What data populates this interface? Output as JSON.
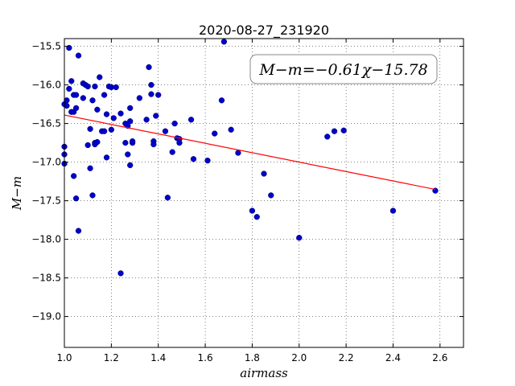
{
  "chart_data": {
    "type": "scatter",
    "title": "2020-08-27_231920",
    "xlabel": "airmass",
    "ylabel": "M−m",
    "annotation": "M−m=−0.61χ−15.78",
    "xlim": [
      1.0,
      2.7
    ],
    "ylim": [
      -19.4,
      -15.4
    ],
    "xticks": [
      "1.0",
      "1.2",
      "1.4",
      "1.6",
      "1.8",
      "2.0",
      "2.2",
      "2.4",
      "2.6"
    ],
    "yticks": [
      "−15.5",
      "−16.0",
      "−16.5",
      "−17.0",
      "−17.5",
      "−18.0",
      "−18.5",
      "−19.0"
    ],
    "grid": true,
    "point_color": "#0000cc",
    "fit_color": "#ff0000",
    "fit": {
      "slope": -0.61,
      "intercept": -15.78,
      "x_range": [
        1.0,
        2.58
      ]
    },
    "points": [
      [
        1.0,
        -16.25
      ],
      [
        1.0,
        -16.8
      ],
      [
        1.0,
        -16.9
      ],
      [
        1.0,
        -17.02
      ],
      [
        1.01,
        -16.27
      ],
      [
        1.01,
        -16.2
      ],
      [
        1.02,
        -15.52
      ],
      [
        1.02,
        -16.05
      ],
      [
        1.03,
        -15.95
      ],
      [
        1.03,
        -16.35
      ],
      [
        1.04,
        -16.35
      ],
      [
        1.04,
        -16.13
      ],
      [
        1.04,
        -17.18
      ],
      [
        1.05,
        -16.3
      ],
      [
        1.05,
        -16.13
      ],
      [
        1.05,
        -17.47
      ],
      [
        1.06,
        -15.62
      ],
      [
        1.06,
        -17.89
      ],
      [
        1.08,
        -15.98
      ],
      [
        1.08,
        -16.17
      ],
      [
        1.09,
        -16.0
      ],
      [
        1.1,
        -16.02
      ],
      [
        1.1,
        -16.78
      ],
      [
        1.11,
        -16.57
      ],
      [
        1.11,
        -17.08
      ],
      [
        1.12,
        -16.2
      ],
      [
        1.12,
        -17.43
      ],
      [
        1.13,
        -16.02
      ],
      [
        1.13,
        -16.75
      ],
      [
        1.13,
        -16.77
      ],
      [
        1.14,
        -16.32
      ],
      [
        1.14,
        -16.74
      ],
      [
        1.15,
        -15.9
      ],
      [
        1.16,
        -16.6
      ],
      [
        1.17,
        -16.13
      ],
      [
        1.17,
        -16.6
      ],
      [
        1.18,
        -16.38
      ],
      [
        1.18,
        -16.94
      ],
      [
        1.19,
        -16.02
      ],
      [
        1.2,
        -16.03
      ],
      [
        1.2,
        -16.58
      ],
      [
        1.21,
        -16.43
      ],
      [
        1.22,
        -16.03
      ],
      [
        1.24,
        -16.37
      ],
      [
        1.24,
        -18.44
      ],
      [
        1.26,
        -16.5
      ],
      [
        1.26,
        -16.75
      ],
      [
        1.27,
        -16.9
      ],
      [
        1.27,
        -16.53
      ],
      [
        1.28,
        -16.3
      ],
      [
        1.28,
        -16.47
      ],
      [
        1.29,
        -16.75
      ],
      [
        1.29,
        -16.73
      ],
      [
        1.28,
        -17.04
      ],
      [
        1.32,
        -16.17
      ],
      [
        1.35,
        -16.45
      ],
      [
        1.36,
        -15.77
      ],
      [
        1.37,
        -16.0
      ],
      [
        1.37,
        -16.12
      ],
      [
        1.38,
        -16.73
      ],
      [
        1.38,
        -16.77
      ],
      [
        1.39,
        -16.4
      ],
      [
        1.4,
        -16.13
      ],
      [
        1.43,
        -16.6
      ],
      [
        1.44,
        -17.46
      ],
      [
        1.46,
        -16.87
      ],
      [
        1.47,
        -16.5
      ],
      [
        1.48,
        -16.69
      ],
      [
        1.49,
        -16.7
      ],
      [
        1.49,
        -16.75
      ],
      [
        1.54,
        -16.45
      ],
      [
        1.55,
        -16.96
      ],
      [
        1.61,
        -16.98
      ],
      [
        1.64,
        -16.63
      ],
      [
        1.67,
        -16.2
      ],
      [
        1.68,
        -15.44
      ],
      [
        1.71,
        -16.58
      ],
      [
        1.74,
        -16.88
      ],
      [
        1.8,
        -17.63
      ],
      [
        1.82,
        -17.71
      ],
      [
        1.85,
        -17.15
      ],
      [
        1.88,
        -17.43
      ],
      [
        2.0,
        -17.98
      ],
      [
        2.12,
        -16.67
      ],
      [
        2.15,
        -16.6
      ],
      [
        2.19,
        -16.59
      ],
      [
        2.4,
        -17.63
      ],
      [
        2.58,
        -17.37
      ]
    ]
  }
}
